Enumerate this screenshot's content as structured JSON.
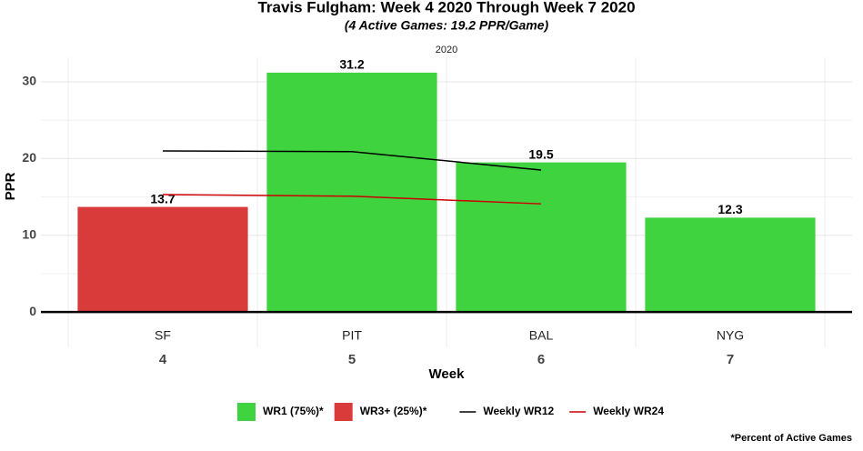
{
  "chart_data": {
    "type": "bar",
    "title": "Travis Fulgham: Week 4 2020 Through Week 7 2020",
    "subtitle": "(4 Active Games: 19.2 PPR/Game)",
    "facet": "2020",
    "categories": [
      "SF",
      "PIT",
      "BAL",
      "NYG"
    ],
    "weeks": [
      "4",
      "5",
      "6",
      "7"
    ],
    "xlabel": "Week",
    "ylabel": "PPR",
    "values": [
      13.7,
      31.2,
      19.5,
      12.3
    ],
    "colors": [
      "#d93a3a",
      "#3fd43f",
      "#3fd43f",
      "#3fd43f"
    ],
    "ylim": [
      -4.6,
      33.2
    ],
    "yticks": [
      0,
      10,
      20,
      30
    ],
    "minor_yticks": [
      5,
      15,
      25
    ],
    "grid": true,
    "bar_legend": [
      {
        "name": "WR1 (75%)*",
        "color": "#3fd43f"
      },
      {
        "name": "WR3+ (25%)*",
        "color": "#d93a3a"
      }
    ],
    "lines": [
      {
        "name": "Weekly WR12",
        "color": "#000000",
        "values": [
          21.0,
          20.9,
          18.5,
          null
        ]
      },
      {
        "name": "Weekly WR24",
        "color": "#cc0000",
        "values": [
          15.3,
          15.1,
          14.1,
          null
        ]
      }
    ],
    "legend": "bottom",
    "footnote": "*Percent of Active Games"
  }
}
